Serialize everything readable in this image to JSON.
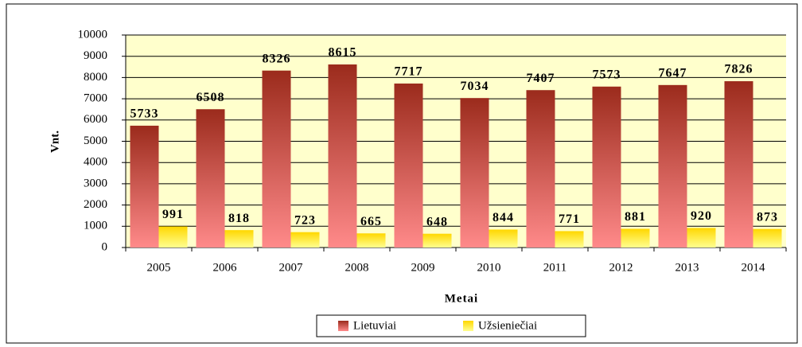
{
  "chart_data": {
    "type": "bar",
    "x_label": "Metai",
    "y_label": "Vnt.",
    "categories": [
      "2005",
      "2006",
      "2007",
      "2008",
      "2009",
      "2010",
      "2011",
      "2012",
      "2013",
      "2014"
    ],
    "series": [
      {
        "name": "Lietuviai",
        "color": "#9b2b1c",
        "values": [
          5733,
          6508,
          8326,
          8615,
          7717,
          7034,
          7407,
          7573,
          7647,
          7826
        ]
      },
      {
        "name": "Užsieniečiai",
        "color": "#ffd700",
        "values": [
          991,
          818,
          723,
          665,
          648,
          844,
          771,
          881,
          920,
          873
        ]
      }
    ],
    "ylim": [
      0,
      10000
    ],
    "yticks": [
      0,
      1000,
      2000,
      3000,
      4000,
      5000,
      6000,
      7000,
      8000,
      9000,
      10000
    ],
    "grid": true,
    "legend": "bottom"
  }
}
